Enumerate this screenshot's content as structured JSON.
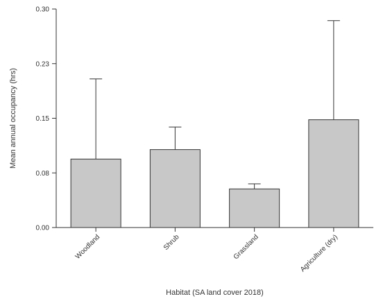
{
  "chart_data": {
    "type": "bar",
    "title": "",
    "xlabel": "Habitat (SA land cover 2018)",
    "ylabel": "Mean annual occupancy (hrs)",
    "categories": [
      "Woodland",
      "Shrub",
      "Grassland",
      "Agriculture (dry)"
    ],
    "values": [
      0.094,
      0.107,
      0.053,
      0.148
    ],
    "error_upper": [
      0.204,
      0.138,
      0.06,
      0.284
    ],
    "error_type": "upper only",
    "ylim": [
      0,
      0.3
    ],
    "yticks": [
      0.0,
      0.075,
      0.15,
      0.225,
      0.3
    ],
    "ytick_labels": [
      "0.00",
      "0.08",
      "0.15",
      "0.23",
      "0.30"
    ],
    "grid": false,
    "legend": "none",
    "bar_color": "#c8c8c8",
    "edge_color": "#333333"
  }
}
